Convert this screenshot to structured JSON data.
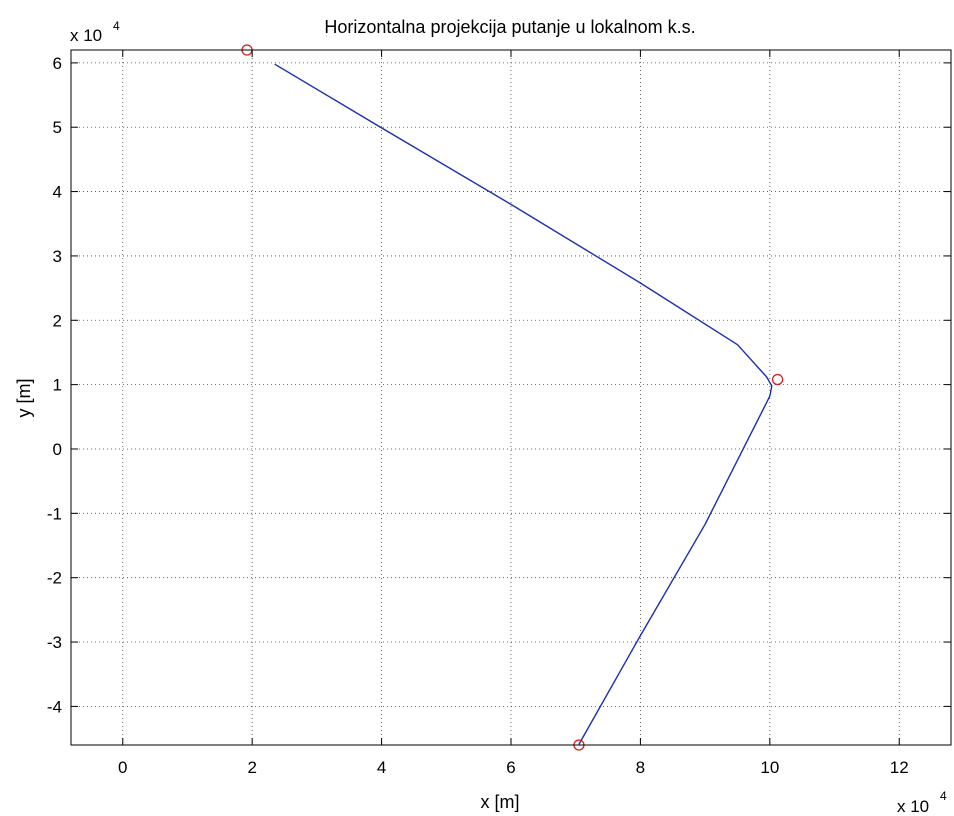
{
  "chart_data": {
    "type": "line",
    "title": "Horizontalna projekcija putanje u lokalnom k.s.",
    "xlabel": "x [m]",
    "ylabel": "y [m]",
    "x_exponent_label": "x 10",
    "x_exponent_power": "4",
    "y_exponent_label": "x 10",
    "y_exponent_power": "4",
    "xlim": [
      -8000,
      128000
    ],
    "ylim": [
      -46000,
      62000
    ],
    "x_ticks": [
      0,
      20000,
      40000,
      60000,
      80000,
      100000,
      120000
    ],
    "x_tick_labels": [
      "0",
      "2",
      "4",
      "6",
      "8",
      "10",
      "12"
    ],
    "y_ticks": [
      -40000,
      -30000,
      -20000,
      -10000,
      0,
      10000,
      20000,
      30000,
      40000,
      50000,
      60000
    ],
    "y_tick_labels": [
      "-4",
      "-3",
      "-2",
      "-1",
      "0",
      "1",
      "2",
      "3",
      "4",
      "5",
      "6"
    ],
    "grid": true,
    "series": [
      {
        "color": "#1a2fb0",
        "style": "solid",
        "x": [
          23500,
          40000,
          60000,
          80000,
          95000,
          99500,
          100300,
          100000,
          90000,
          80000,
          70500
        ],
        "y": [
          59800,
          49900,
          38000,
          25800,
          16200,
          11200,
          9800,
          8200,
          -11700,
          -29000,
          -45900
        ]
      },
      {
        "color": "#d02020",
        "style": "markers",
        "marker": "circle",
        "x": [
          19200,
          101200,
          70500
        ],
        "y": [
          62000,
          10800,
          -46000
        ]
      }
    ]
  }
}
